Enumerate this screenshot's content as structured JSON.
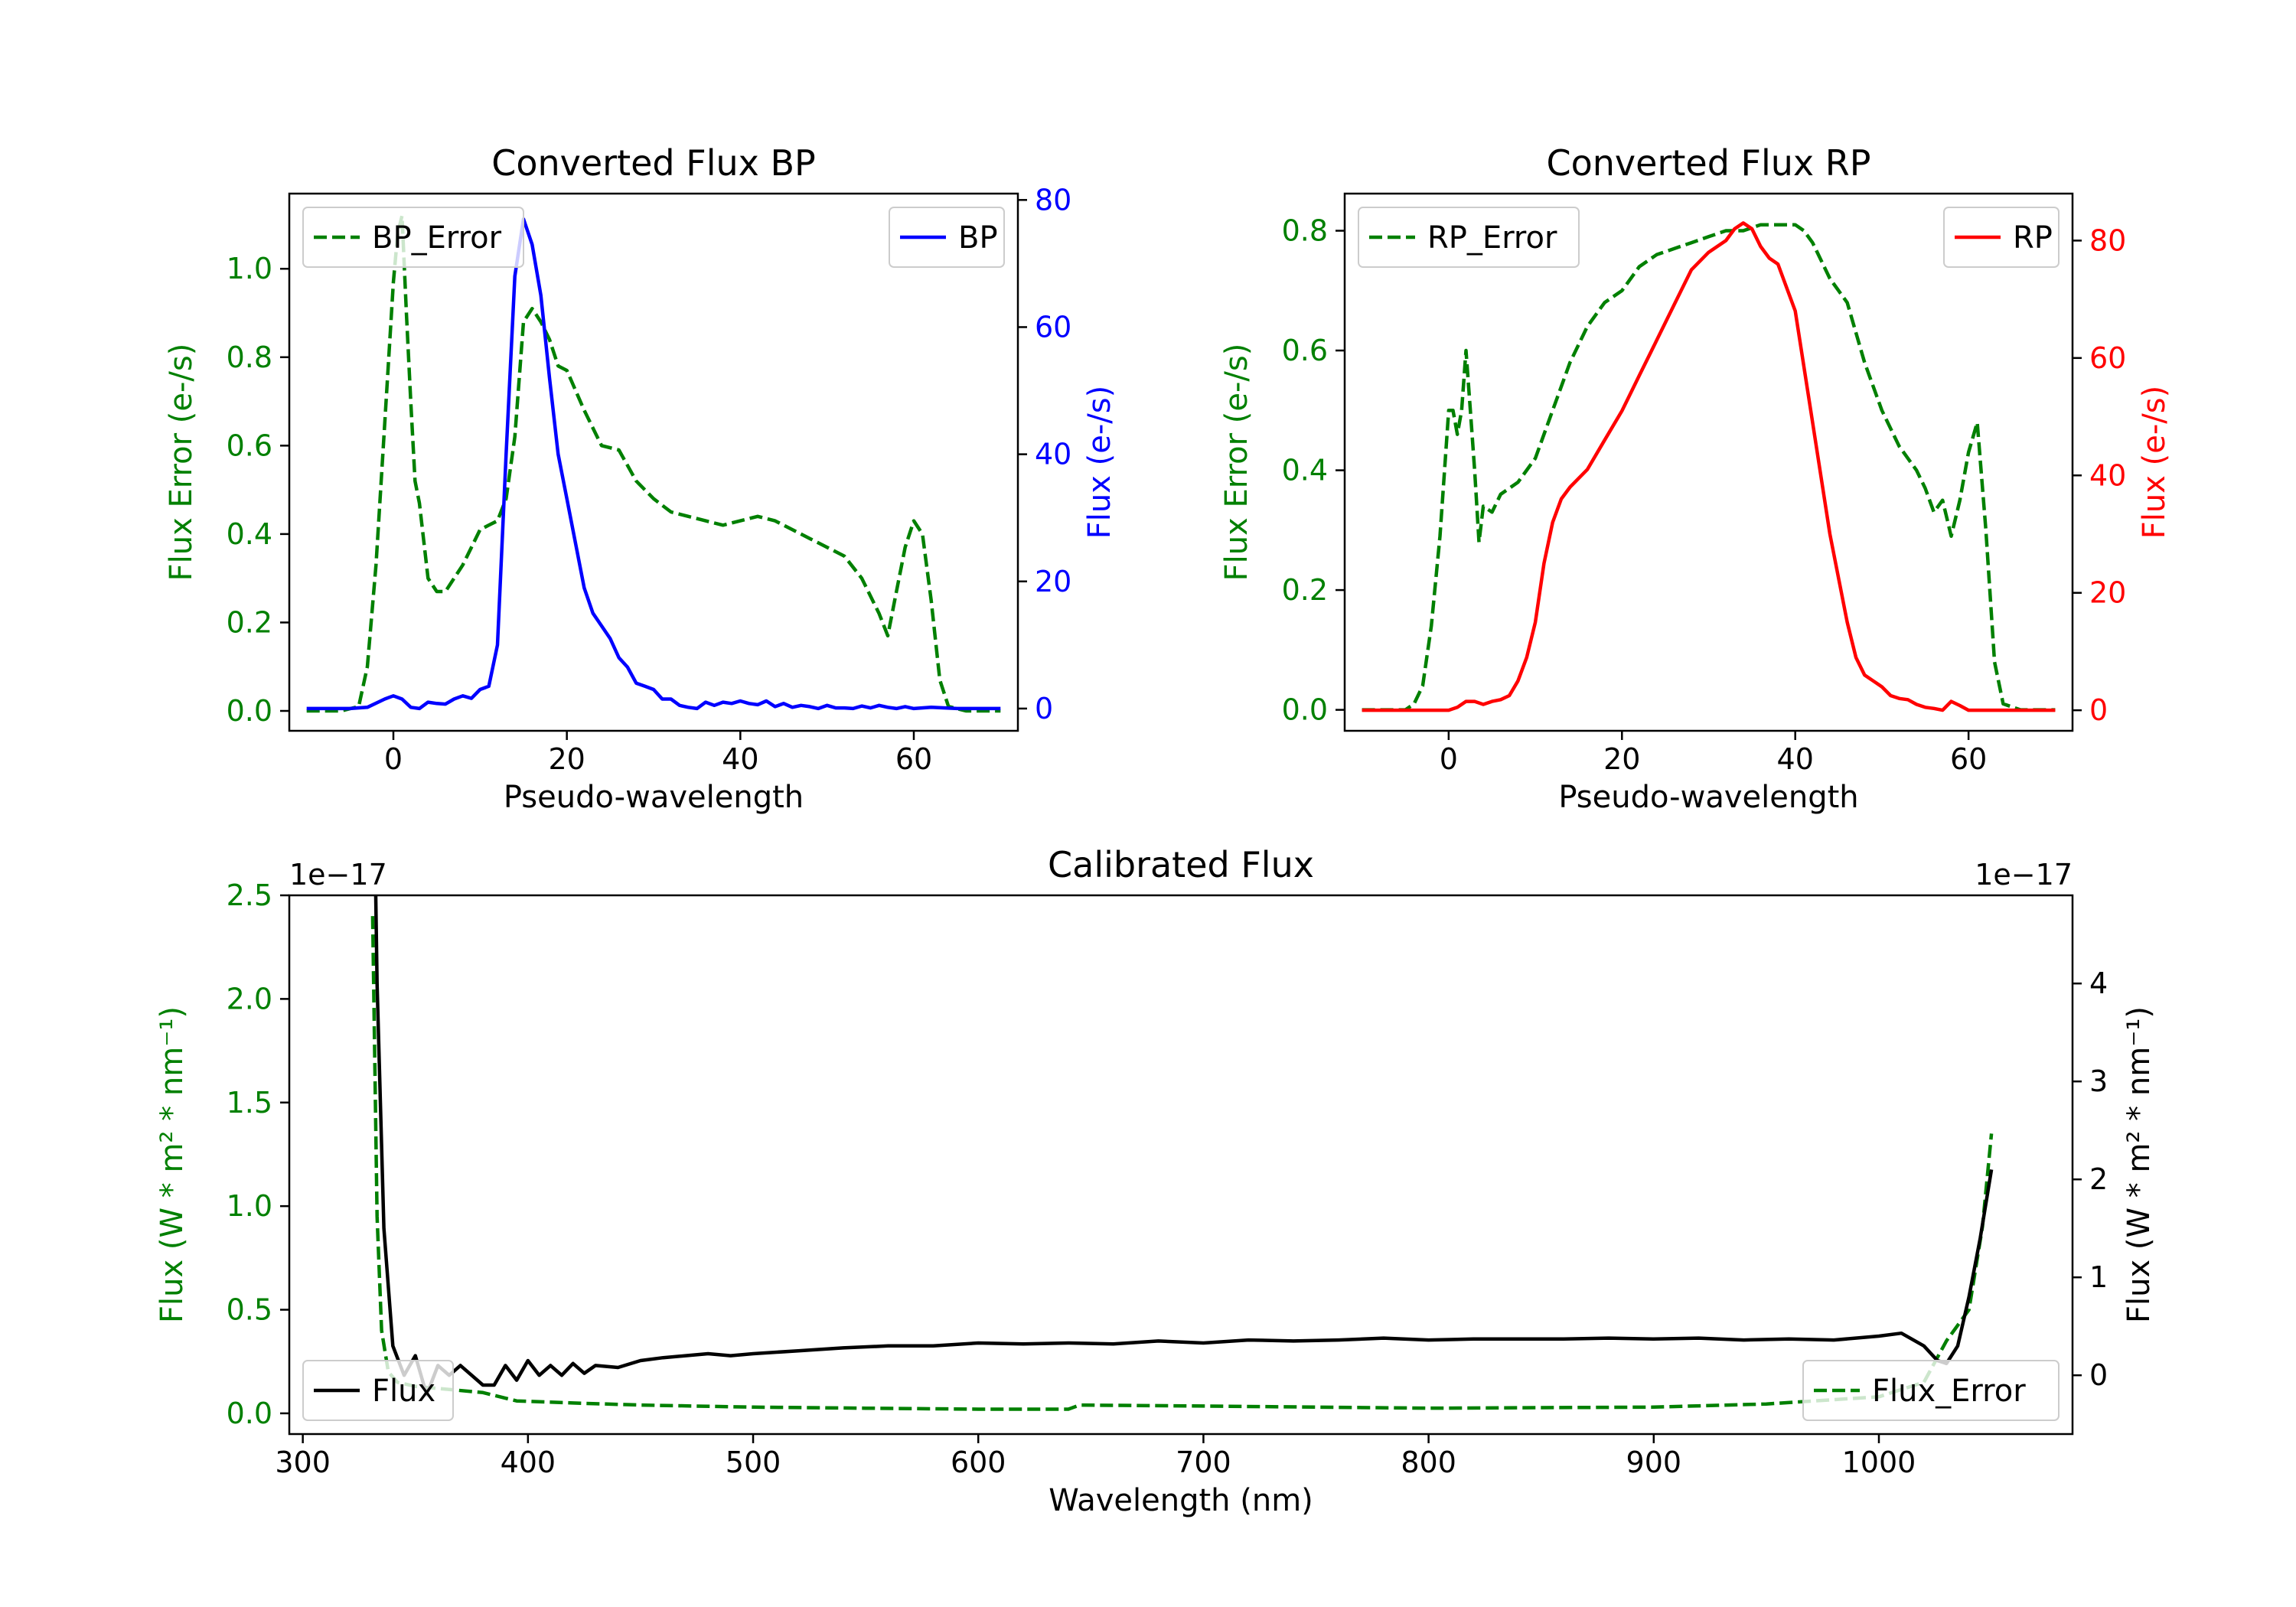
{
  "colors": {
    "error": "#008000",
    "bp": "#0000ff",
    "rp": "#ff0000",
    "flux": "#000000",
    "axis": "#000000"
  },
  "chart_data": [
    {
      "id": "bp",
      "type": "line",
      "title": "Converted Flux BP",
      "xlabel": "Pseudo-wavelength",
      "ylabel_left": "Flux Error (e-/s)",
      "ylabel_right": "Flux (e-/s)",
      "xlim": [
        -12,
        72
      ],
      "ylim_left": [
        -0.045,
        1.17
      ],
      "ylim_right": [
        -3.5,
        81
      ],
      "xticks": [
        0,
        20,
        40,
        60
      ],
      "yticks_left": [
        0.0,
        0.2,
        0.4,
        0.6,
        0.8,
        1.0
      ],
      "yticks_left_labels": [
        "0.0",
        "0.2",
        "0.4",
        "0.6",
        "0.8",
        "1.0"
      ],
      "yticks_right": [
        0,
        20,
        40,
        60,
        80
      ],
      "yticks_right_labels": [
        "0",
        "20",
        "40",
        "60",
        "80"
      ],
      "legend_left": {
        "label": "BP_Error",
        "placement": "upper left"
      },
      "legend_right": {
        "label": "BP",
        "placement": "upper right"
      },
      "series": [
        {
          "name": "BP_Error",
          "axis": "left",
          "style": "dashed",
          "color_key": "error",
          "x": [
            -10,
            -6,
            -4,
            -3,
            -2,
            -1,
            0,
            0.5,
            1,
            1.5,
            2,
            2.5,
            3,
            4,
            5,
            6,
            7,
            8,
            9,
            10,
            11,
            12,
            13,
            14,
            15,
            16,
            17,
            18,
            19,
            20,
            22,
            24,
            26,
            28,
            30,
            32,
            34,
            36,
            38,
            40,
            42,
            44,
            46,
            48,
            50,
            52,
            54,
            56,
            57,
            58,
            59,
            60,
            61,
            62,
            63,
            64,
            66,
            70
          ],
          "y": [
            0.0,
            0.0,
            0.01,
            0.1,
            0.33,
            0.65,
            0.97,
            1.08,
            1.12,
            0.9,
            0.7,
            0.52,
            0.47,
            0.3,
            0.27,
            0.27,
            0.3,
            0.33,
            0.37,
            0.41,
            0.42,
            0.43,
            0.48,
            0.62,
            0.88,
            0.91,
            0.88,
            0.84,
            0.78,
            0.77,
            0.68,
            0.6,
            0.59,
            0.52,
            0.48,
            0.45,
            0.44,
            0.43,
            0.42,
            0.43,
            0.44,
            0.43,
            0.41,
            0.39,
            0.37,
            0.35,
            0.3,
            0.22,
            0.17,
            0.27,
            0.37,
            0.43,
            0.4,
            0.25,
            0.07,
            0.01,
            0.0,
            0.0
          ]
        },
        {
          "name": "BP",
          "axis": "right",
          "style": "solid",
          "color_key": "bp",
          "x": [
            -10,
            -5,
            -3,
            -1,
            0,
            1,
            2,
            3,
            4,
            5,
            6,
            7,
            8,
            9,
            10,
            11,
            12,
            13,
            14,
            15,
            16,
            17,
            18,
            19,
            20,
            21,
            22,
            23,
            24,
            25,
            26,
            27,
            28,
            29,
            30,
            31,
            32,
            33,
            34,
            35,
            36,
            37,
            38,
            39,
            40,
            41,
            42,
            43,
            44,
            45,
            46,
            47,
            48,
            49,
            50,
            51,
            52,
            53,
            54,
            55,
            56,
            57,
            58,
            59,
            60,
            62,
            65,
            70
          ],
          "y": [
            0,
            0,
            0.2,
            1.5,
            2.0,
            1.5,
            0.2,
            0.0,
            1.0,
            0.8,
            0.7,
            1.5,
            2.0,
            1.6,
            3.0,
            3.5,
            10.0,
            40.0,
            68.0,
            77.0,
            73.0,
            65.0,
            52.0,
            40.0,
            33.0,
            26.0,
            19.0,
            15.0,
            13.0,
            11.0,
            8.0,
            6.5,
            4.0,
            3.5,
            3.0,
            1.5,
            1.5,
            0.5,
            0.2,
            0.0,
            1.0,
            0.5,
            1.0,
            0.8,
            1.2,
            0.8,
            0.6,
            1.2,
            0.3,
            0.8,
            0.2,
            0.5,
            0.3,
            0.0,
            0.5,
            0.1,
            0.1,
            0.0,
            0.4,
            0.1,
            0.5,
            0.2,
            0.0,
            0.3,
            0.0,
            0.2,
            0.0,
            0.0
          ]
        }
      ]
    },
    {
      "id": "rp",
      "type": "line",
      "title": "Converted Flux RP",
      "xlabel": "Pseudo-wavelength",
      "ylabel_left": "Flux Error (e-/s)",
      "ylabel_right": "Flux (e-/s)",
      "xlim": [
        -12,
        72
      ],
      "ylim_left": [
        -0.035,
        0.862
      ],
      "ylim_right": [
        -3.5,
        88
      ],
      "xticks": [
        0,
        20,
        40,
        60
      ],
      "yticks_left": [
        0.0,
        0.2,
        0.4,
        0.6,
        0.8
      ],
      "yticks_left_labels": [
        "0.0",
        "0.2",
        "0.4",
        "0.6",
        "0.8"
      ],
      "yticks_right": [
        0,
        20,
        40,
        60,
        80
      ],
      "yticks_right_labels": [
        "0",
        "20",
        "40",
        "60",
        "80"
      ],
      "legend_left": {
        "label": "RP_Error",
        "placement": "upper left"
      },
      "legend_right": {
        "label": "RP",
        "placement": "upper right"
      },
      "series": [
        {
          "name": "RP_Error",
          "axis": "left",
          "style": "dashed",
          "color_key": "error",
          "x": [
            -10,
            -5,
            -4,
            -3,
            -2,
            -1,
            0,
            0.5,
            1,
            1.5,
            2,
            2.5,
            3,
            3.5,
            4,
            5,
            6,
            8,
            10,
            12,
            14,
            16,
            18,
            20,
            22,
            24,
            26,
            28,
            30,
            32,
            34,
            36,
            38,
            40,
            41,
            42,
            44,
            46,
            48,
            50,
            52,
            54,
            55,
            56,
            57,
            58,
            59,
            60,
            61,
            62,
            63,
            64,
            66,
            70
          ],
          "y": [
            0.0,
            0.0,
            0.01,
            0.04,
            0.14,
            0.29,
            0.5,
            0.5,
            0.46,
            0.5,
            0.6,
            0.5,
            0.4,
            0.28,
            0.34,
            0.33,
            0.36,
            0.38,
            0.42,
            0.5,
            0.58,
            0.64,
            0.68,
            0.7,
            0.74,
            0.76,
            0.77,
            0.78,
            0.79,
            0.8,
            0.8,
            0.81,
            0.81,
            0.81,
            0.8,
            0.78,
            0.72,
            0.68,
            0.58,
            0.5,
            0.44,
            0.4,
            0.37,
            0.33,
            0.35,
            0.29,
            0.35,
            0.43,
            0.48,
            0.3,
            0.08,
            0.01,
            0.0,
            0.0
          ]
        },
        {
          "name": "RP",
          "axis": "right",
          "style": "solid",
          "color_key": "rp",
          "x": [
            -10,
            -5,
            -2,
            0,
            1,
            2,
            3,
            4,
            5,
            6,
            7,
            8,
            9,
            10,
            11,
            12,
            13,
            14,
            16,
            18,
            20,
            22,
            24,
            26,
            28,
            30,
            32,
            33,
            34,
            35,
            36,
            37,
            38,
            40,
            42,
            44,
            46,
            47,
            48,
            49,
            50,
            51,
            52,
            53,
            54,
            55,
            56,
            57,
            58,
            59,
            60,
            62,
            65,
            70
          ],
          "y": [
            0,
            0,
            0,
            0,
            0.5,
            1.5,
            1.5,
            1.0,
            1.5,
            1.8,
            2.5,
            5.0,
            9.0,
            15.0,
            25.0,
            32.0,
            36.0,
            38.0,
            41.0,
            46.0,
            51.0,
            57.0,
            63.0,
            69.0,
            75.0,
            78.0,
            80.0,
            82.0,
            83.0,
            82.0,
            79.0,
            77.0,
            76.0,
            68.0,
            49.0,
            30.0,
            15.0,
            9.0,
            6.0,
            5.0,
            4.0,
            2.5,
            2.0,
            1.8,
            1.0,
            0.5,
            0.3,
            0.0,
            1.5,
            0.8,
            0.0,
            0.0,
            0.0,
            0.0
          ]
        }
      ]
    },
    {
      "id": "calib",
      "type": "line",
      "title": "Calibrated Flux",
      "xlabel": "Wavelength (nm)",
      "ylabel_left": "Flux (W * m² * nm⁻¹)",
      "ylabel_right": "Flux (W * m² * nm⁻¹)",
      "offset_left": "1e−17",
      "offset_right": "1e−17",
      "xlim": [
        294,
        1086
      ],
      "ylim_left": [
        -0.1,
        2.5
      ],
      "ylim_right": [
        -0.6,
        4.9
      ],
      "xticks": [
        300,
        400,
        500,
        600,
        700,
        800,
        900,
        1000
      ],
      "yticks_left": [
        0.0,
        0.5,
        1.0,
        1.5,
        2.0,
        2.5
      ],
      "yticks_left_labels": [
        "0.0",
        "0.5",
        "1.0",
        "1.5",
        "2.0",
        "2.5"
      ],
      "yticks_right": [
        0,
        1,
        2,
        3,
        4
      ],
      "yticks_right_labels": [
        "0",
        "1",
        "2",
        "3",
        "4"
      ],
      "legend_left": {
        "label": "Flux",
        "placement": "lower left"
      },
      "legend_right": {
        "label": "Flux_Error",
        "placement": "lower right"
      },
      "series": [
        {
          "name": "Flux_Error",
          "axis": "left",
          "style": "dashed",
          "color_key": "error",
          "x": [
            331,
            333,
            335,
            338,
            342,
            350,
            360,
            380,
            395,
            420,
            450,
            500,
            550,
            600,
            640,
            645,
            700,
            800,
            900,
            950,
            1000,
            1020,
            1030,
            1040,
            1046,
            1050
          ],
          "y": [
            2.4,
            0.95,
            0.4,
            0.2,
            0.15,
            0.13,
            0.12,
            0.1,
            0.06,
            0.05,
            0.04,
            0.03,
            0.025,
            0.02,
            0.02,
            0.04,
            0.035,
            0.025,
            0.03,
            0.045,
            0.08,
            0.15,
            0.35,
            0.5,
            0.9,
            1.35
          ]
        },
        {
          "name": "Flux",
          "axis": "right",
          "style": "solid",
          "color_key": "flux",
          "x": [
            331,
            333,
            336,
            340,
            345,
            350,
            355,
            360,
            365,
            370,
            375,
            380,
            385,
            390,
            395,
            400,
            405,
            410,
            415,
            420,
            425,
            430,
            440,
            450,
            460,
            470,
            480,
            490,
            500,
            520,
            540,
            560,
            580,
            600,
            620,
            640,
            660,
            680,
            700,
            720,
            740,
            760,
            780,
            800,
            820,
            840,
            860,
            880,
            900,
            920,
            940,
            960,
            980,
            1000,
            1010,
            1020,
            1026,
            1030,
            1035,
            1040,
            1045,
            1050
          ],
          "y": [
            7.0,
            4.0,
            1.5,
            0.3,
            0.0,
            0.2,
            -0.2,
            0.1,
            0.0,
            0.1,
            0.0,
            -0.1,
            -0.1,
            0.1,
            -0.05,
            0.15,
            0.0,
            0.1,
            0.0,
            0.12,
            0.02,
            0.1,
            0.08,
            0.15,
            0.18,
            0.2,
            0.22,
            0.2,
            0.22,
            0.25,
            0.28,
            0.3,
            0.3,
            0.33,
            0.32,
            0.33,
            0.32,
            0.35,
            0.33,
            0.36,
            0.35,
            0.36,
            0.38,
            0.36,
            0.37,
            0.37,
            0.37,
            0.38,
            0.37,
            0.38,
            0.36,
            0.37,
            0.36,
            0.4,
            0.43,
            0.3,
            0.15,
            0.12,
            0.3,
            0.8,
            1.4,
            2.1
          ]
        }
      ]
    }
  ]
}
